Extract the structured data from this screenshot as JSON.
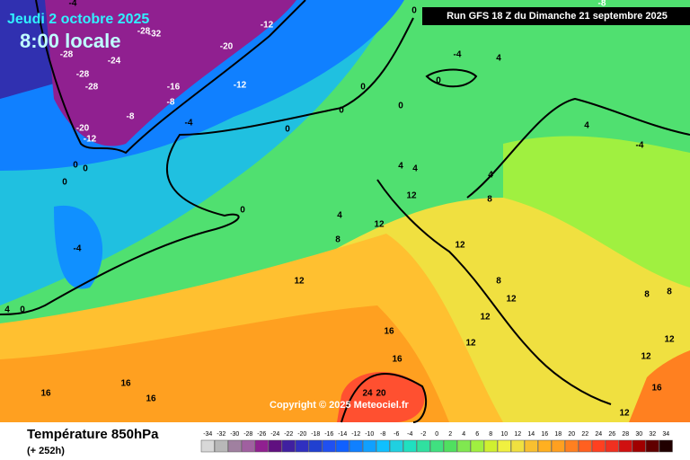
{
  "header": {
    "date": "Jeudi 2 octobre 2025",
    "time": "8:00 locale",
    "run": "Run GFS 18 Z du Dimanche 21 septembre 2025",
    "copyright": "Copyright © 2025 Meteociel.fr"
  },
  "footer": {
    "title": "Température 850hPa",
    "lead": "(+ 252h)"
  },
  "legend": {
    "values": [
      -34,
      -32,
      -30,
      -28,
      -26,
      -24,
      -22,
      -20,
      -18,
      -16,
      -14,
      -12,
      -10,
      -8,
      -6,
      -4,
      -2,
      0,
      2,
      4,
      6,
      8,
      10,
      12,
      14,
      16,
      18,
      20,
      22,
      24,
      26,
      28,
      30,
      32,
      34
    ],
    "colors": [
      "#d8d8d8",
      "#b8b8b8",
      "#a080a0",
      "#a060a0",
      "#902090",
      "#601080",
      "#4020a0",
      "#3030c0",
      "#2040d0",
      "#2050f0",
      "#1060ff",
      "#1080ff",
      "#10a0ff",
      "#10c0ff",
      "#20d0e0",
      "#20e0c0",
      "#30e0a0",
      "#40e080",
      "#50e060",
      "#80e850",
      "#a0f040",
      "#d0f030",
      "#f0f040",
      "#f0e040",
      "#f8c030",
      "#ffb020",
      "#ffa020",
      "#ff8020",
      "#ff6020",
      "#ff4020",
      "#f03020",
      "#d01010",
      "#a00000",
      "#600000",
      "#200000"
    ]
  },
  "contour_labels": [
    -12,
    -16,
    -12,
    -8,
    -4,
    -8,
    -12,
    -20,
    -28,
    -28,
    -28,
    -24,
    -20,
    -4,
    4,
    0,
    0,
    0,
    0,
    0,
    0,
    0,
    0,
    0,
    -4,
    4,
    0,
    4,
    8,
    12,
    4,
    4,
    4,
    8,
    12,
    12,
    12,
    16,
    16,
    16,
    16,
    16,
    24,
    20,
    8,
    12,
    12,
    12,
    8,
    8,
    12,
    12,
    16,
    12,
    4,
    -4,
    -8,
    0,
    -28,
    -32,
    -4
  ]
}
